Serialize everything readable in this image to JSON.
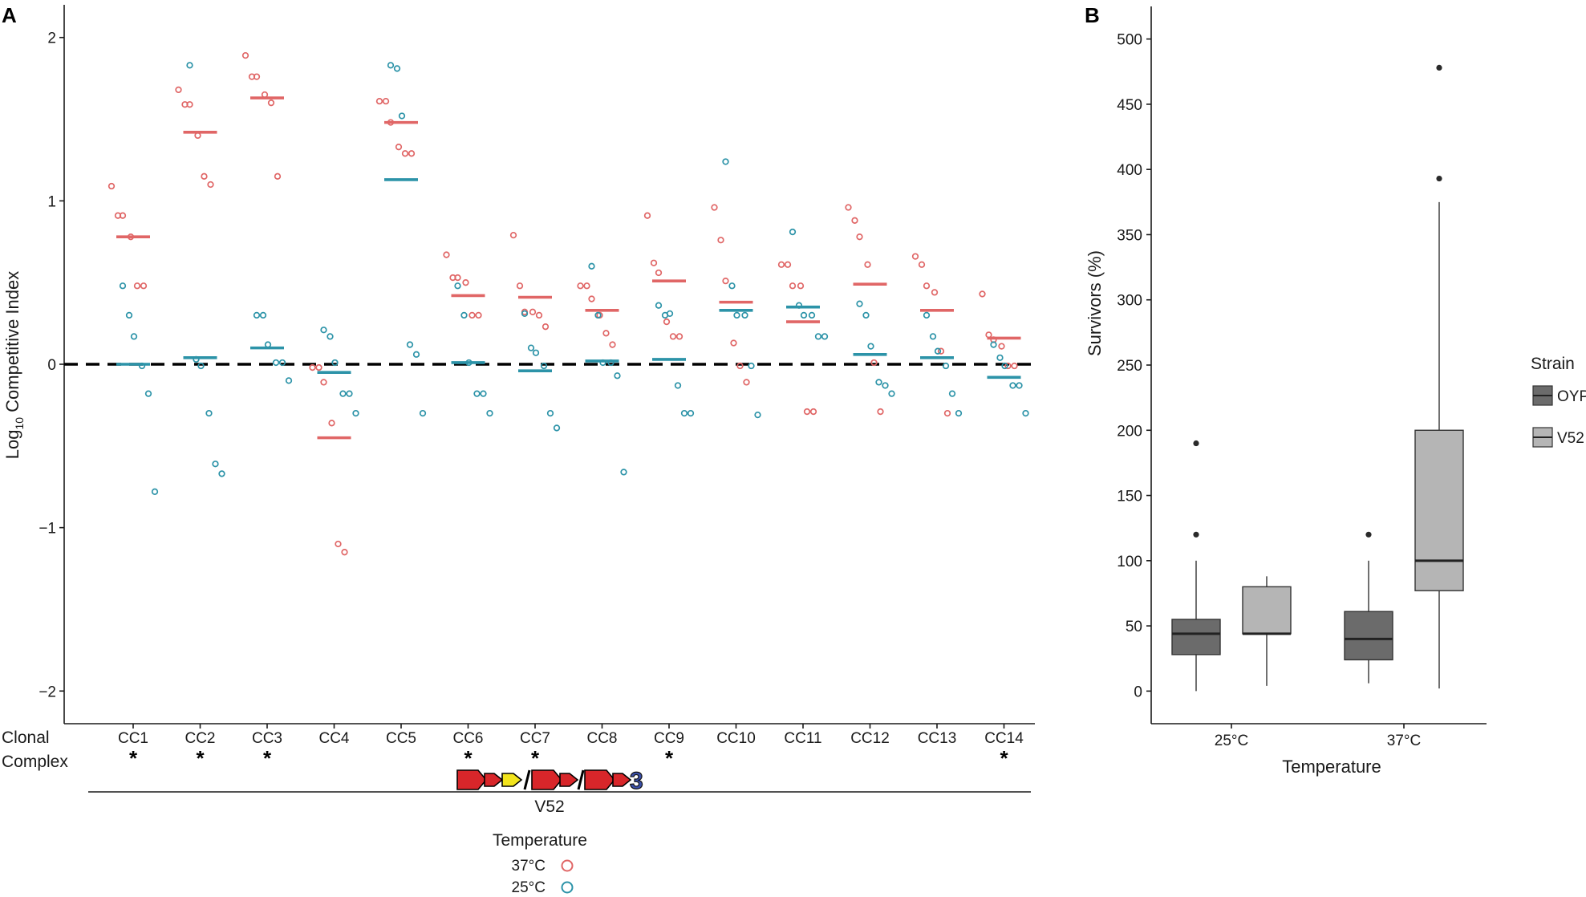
{
  "chart_data": [
    {
      "panel": "A",
      "type": "scatter",
      "ylabel_prefix": "Log",
      "ylabel_sub": "10",
      "ylabel_rest": " Competitive Index",
      "xlabel_line1": "Clonal",
      "xlabel_line2": "Complex",
      "ylim": [
        -2.2,
        2.2
      ],
      "yticks": [
        {
          "v": 2,
          "label": "2"
        },
        {
          "v": 1,
          "label": "1"
        },
        {
          "v": 0,
          "label": "0"
        },
        {
          "v": -1,
          "label": "−1"
        },
        {
          "v": -2,
          "label": "−2"
        }
      ],
      "reference_line": 0,
      "categories": [
        "CC1",
        "CC2",
        "CC3",
        "CC4",
        "CC5",
        "CC6",
        "CC7",
        "CC8",
        "CC9",
        "CC10",
        "CC11",
        "CC12",
        "CC13",
        "CC14"
      ],
      "significance": [
        "*",
        "*",
        "*",
        "",
        "",
        "*",
        "*",
        "",
        "*",
        "",
        "",
        "",
        "",
        "*"
      ],
      "series": [
        {
          "name": "37°C",
          "color": "#e06666",
          "means": [
            0.78,
            1.42,
            1.63,
            -0.45,
            1.48,
            0.42,
            0.41,
            0.33,
            0.51,
            0.38,
            0.26,
            0.49,
            0.33,
            0.16
          ],
          "points": [
            [
              1.09,
              0.91,
              0.91,
              0.78,
              0.48,
              0.48
            ],
            [
              1.68,
              1.59,
              1.59,
              1.4,
              1.15,
              1.1
            ],
            [
              1.89,
              1.76,
              1.76,
              1.65,
              1.6,
              1.15
            ],
            [
              -0.02,
              -0.02,
              -0.11,
              -0.36,
              -1.1,
              -1.15
            ],
            [
              1.61,
              1.61,
              1.48,
              1.33,
              1.29,
              1.29
            ],
            [
              0.67,
              0.53,
              0.53,
              0.5,
              0.3,
              0.3
            ],
            [
              0.79,
              0.48,
              0.32,
              0.32,
              0.3,
              0.23
            ],
            [
              0.48,
              0.48,
              0.4,
              0.3,
              0.19,
              0.12
            ],
            [
              0.91,
              0.62,
              0.56,
              0.26,
              0.17,
              0.17
            ],
            [
              0.96,
              0.76,
              0.51,
              0.13,
              -0.01,
              -0.11
            ],
            [
              0.61,
              0.61,
              0.48,
              0.48,
              -0.29,
              -0.29
            ],
            [
              0.96,
              0.88,
              0.78,
              0.61,
              0.01,
              -0.29
            ],
            [
              0.66,
              0.61,
              0.48,
              0.44,
              0.08,
              -0.3
            ],
            [
              0.43,
              0.18,
              0.15,
              0.11,
              -0.01,
              -0.01
            ]
          ]
        },
        {
          "name": "25°C",
          "color": "#2c93a8",
          "means": [
            0.0,
            0.04,
            0.1,
            -0.05,
            1.13,
            0.01,
            -0.04,
            0.02,
            0.03,
            0.33,
            0.35,
            0.06,
            0.04,
            -0.08
          ],
          "points": [
            [
              0.48,
              0.3,
              0.17,
              -0.01,
              -0.18,
              -0.78
            ],
            [
              1.83,
              0.03,
              -0.01,
              -0.3,
              -0.61,
              -0.67
            ],
            [
              0.3,
              0.3,
              0.12,
              0.01,
              0.01,
              -0.1
            ],
            [
              0.21,
              0.17,
              0.01,
              -0.18,
              -0.18,
              -0.3
            ],
            [
              1.83,
              1.81,
              1.52,
              0.12,
              0.06,
              -0.3
            ],
            [
              0.48,
              0.3,
              0.01,
              -0.18,
              -0.18,
              -0.3
            ],
            [
              0.31,
              0.1,
              0.07,
              -0.01,
              -0.3,
              -0.39
            ],
            [
              0.6,
              0.3,
              0.01,
              0.01,
              -0.07,
              -0.66
            ],
            [
              0.36,
              0.3,
              0.31,
              -0.13,
              -0.3,
              -0.3
            ],
            [
              1.24,
              0.48,
              0.3,
              0.3,
              -0.01,
              -0.31
            ],
            [
              0.81,
              0.36,
              0.3,
              0.3,
              0.17,
              0.17
            ],
            [
              0.37,
              0.3,
              0.11,
              -0.11,
              -0.13,
              -0.18
            ],
            [
              0.3,
              0.17,
              0.08,
              -0.01,
              -0.18,
              -0.3
            ],
            [
              0.12,
              0.04,
              -0.01,
              -0.13,
              -0.13,
              -0.3
            ]
          ]
        }
      ],
      "strain_label": "V52",
      "operon_number": "3",
      "legend": {
        "title": "Temperature",
        "entries": [
          "37°C",
          "25°C"
        ]
      }
    },
    {
      "panel": "B",
      "type": "box",
      "xlabel": "Temperature",
      "ylabel": "Survivors (%)",
      "ylim": [
        -25,
        525
      ],
      "yticks": [
        0,
        50,
        100,
        150,
        200,
        250,
        300,
        350,
        400,
        450,
        500
      ],
      "categories": [
        "25°C",
        "37°C"
      ],
      "legend": {
        "title": "Strain",
        "entries": [
          "OYP",
          "V52"
        ]
      },
      "series": [
        {
          "name": "OYP",
          "color": "#6b6b6b",
          "boxes": [
            {
              "q1": 28,
              "median": 44,
              "q3": 55,
              "lower": 0,
              "upper": 100,
              "outliers": [
                120,
                190
              ]
            },
            {
              "q1": 24,
              "median": 40,
              "q3": 61,
              "lower": 6,
              "upper": 100,
              "outliers": [
                120
              ]
            }
          ]
        },
        {
          "name": "V52",
          "color": "#b5b5b5",
          "boxes": [
            {
              "q1": 44,
              "median": 44,
              "q3": 80,
              "lower": 4,
              "upper": 88,
              "outliers": []
            },
            {
              "q1": 77,
              "median": 100,
              "q3": 200,
              "lower": 2,
              "upper": 375,
              "outliers": [
                393,
                478
              ]
            }
          ]
        }
      ]
    }
  ]
}
